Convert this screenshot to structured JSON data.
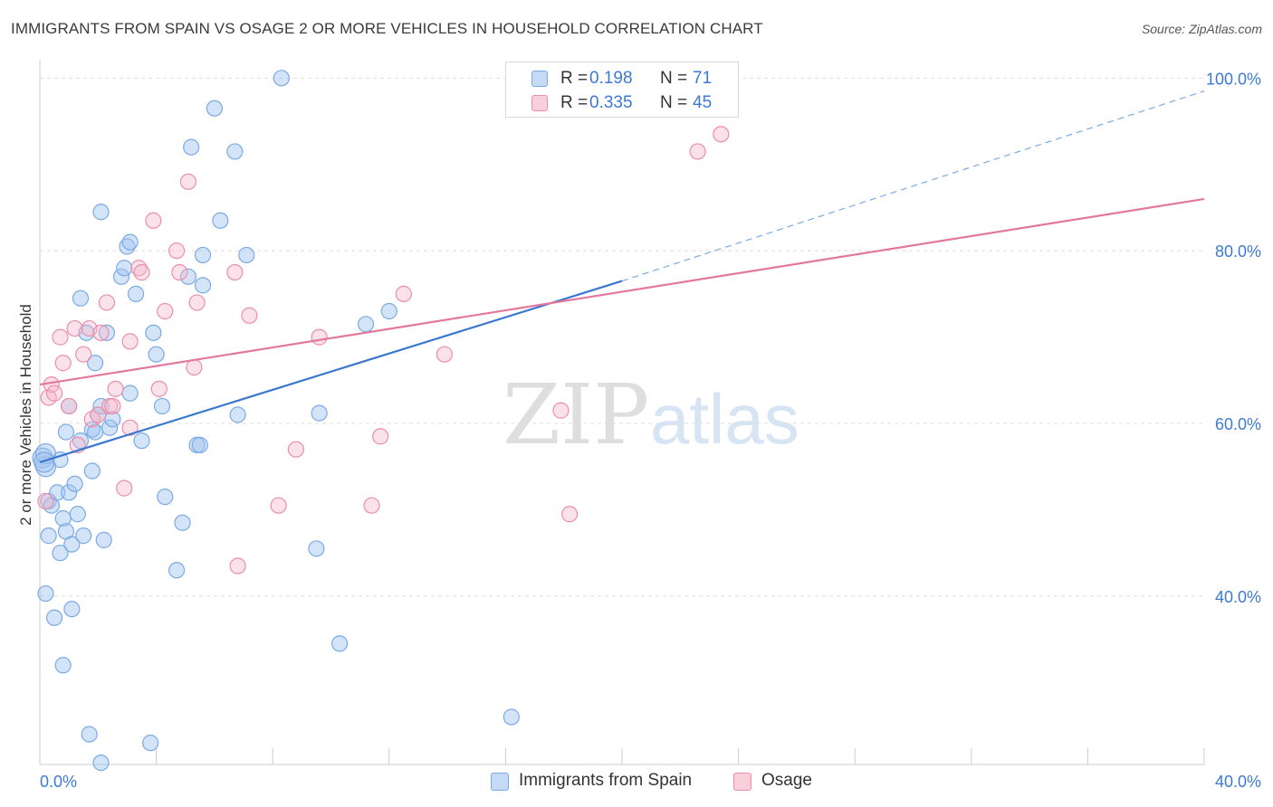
{
  "header": {
    "title": "IMMIGRANTS FROM SPAIN VS OSAGE 2 OR MORE VEHICLES IN HOUSEHOLD CORRELATION CHART",
    "source": "Source: ZipAtlas.com"
  },
  "watermark": {
    "zip": "ZIP",
    "atlas": "atlas"
  },
  "legend": {
    "r_label": "R =",
    "n_label": "N =",
    "series": [
      {
        "name": "Immigrants from Spain",
        "r": "0.198",
        "n": "71",
        "color": "#7aaae6",
        "fill": "#c5daf5"
      },
      {
        "name": "Osage",
        "r": "0.335",
        "n": "45",
        "color": "#ec8eab",
        "fill": "#f8cfdb"
      }
    ]
  },
  "chart_data": {
    "type": "scatter",
    "title": "IMMIGRANTS FROM SPAIN VS OSAGE 2 OR MORE VEHICLES IN HOUSEHOLD CORRELATION CHART",
    "xlabel": "",
    "ylabel": "2 or more Vehicles in Household",
    "xlim": [
      0,
      40
    ],
    "ylim": [
      20.5,
      101.5
    ],
    "x_tick_labels": [
      "0.0%",
      "40.0%"
    ],
    "y_ticks": [
      40,
      60,
      80,
      100
    ],
    "y_tick_labels": [
      "40.0%",
      "60.0%",
      "80.0%",
      "100.0%"
    ],
    "grid": true,
    "legend_position": "top-center",
    "series": [
      {
        "name": "Immigrants from Spain",
        "color": "#3a78d0",
        "points": [
          [
            0.1,
            56.0
          ],
          [
            0.2,
            55.0
          ],
          [
            0.2,
            40.3
          ],
          [
            0.3,
            51.0
          ],
          [
            0.3,
            47.0
          ],
          [
            0.4,
            50.5
          ],
          [
            0.5,
            37.5
          ],
          [
            0.6,
            52.0
          ],
          [
            0.7,
            55.8
          ],
          [
            0.7,
            45.0
          ],
          [
            0.8,
            49.0
          ],
          [
            0.8,
            32.0
          ],
          [
            0.9,
            47.5
          ],
          [
            0.9,
            59.0
          ],
          [
            1.0,
            52.0
          ],
          [
            1.0,
            62.0
          ],
          [
            1.1,
            38.5
          ],
          [
            1.1,
            46.0
          ],
          [
            1.2,
            53.0
          ],
          [
            1.3,
            49.5
          ],
          [
            1.4,
            74.5
          ],
          [
            1.4,
            58.0
          ],
          [
            1.5,
            47.0
          ],
          [
            1.6,
            70.5
          ],
          [
            1.7,
            24.0
          ],
          [
            1.8,
            59.3
          ],
          [
            1.8,
            54.5
          ],
          [
            1.9,
            67.0
          ],
          [
            2.0,
            61.0
          ],
          [
            2.1,
            84.5
          ],
          [
            2.1,
            20.7
          ],
          [
            2.1,
            62.0
          ],
          [
            2.2,
            46.5
          ],
          [
            2.3,
            70.5
          ],
          [
            2.4,
            59.5
          ],
          [
            2.5,
            60.5
          ],
          [
            2.8,
            77.0
          ],
          [
            2.9,
            78.0
          ],
          [
            3.0,
            80.5
          ],
          [
            3.1,
            81.0
          ],
          [
            3.1,
            63.5
          ],
          [
            3.3,
            75.0
          ],
          [
            3.5,
            58.0
          ],
          [
            3.8,
            23.0
          ],
          [
            3.9,
            70.5
          ],
          [
            4.0,
            68.0
          ],
          [
            4.2,
            62.0
          ],
          [
            4.3,
            51.5
          ],
          [
            4.7,
            43.0
          ],
          [
            4.9,
            48.5
          ],
          [
            5.1,
            77.0
          ],
          [
            5.2,
            92.0
          ],
          [
            5.4,
            57.5
          ],
          [
            5.5,
            57.5
          ],
          [
            5.6,
            76.0
          ],
          [
            5.6,
            79.5
          ],
          [
            6.0,
            96.5
          ],
          [
            6.2,
            83.5
          ],
          [
            6.7,
            91.5
          ],
          [
            6.8,
            61.0
          ],
          [
            7.1,
            79.5
          ],
          [
            8.3,
            100.0
          ],
          [
            9.5,
            45.5
          ],
          [
            9.6,
            61.2
          ],
          [
            10.3,
            34.5
          ],
          [
            11.2,
            71.5
          ],
          [
            12.0,
            73.0
          ],
          [
            16.2,
            26.0
          ],
          [
            0.2,
            56.5
          ],
          [
            0.15,
            55.5
          ],
          [
            1.9,
            59.0
          ]
        ]
      },
      {
        "name": "Osage",
        "color": "#e4779c",
        "points": [
          [
            0.2,
            51.0
          ],
          [
            0.3,
            63.0
          ],
          [
            0.4,
            64.5
          ],
          [
            0.5,
            63.5
          ],
          [
            0.7,
            70.0
          ],
          [
            0.8,
            67.0
          ],
          [
            1.0,
            62.0
          ],
          [
            1.2,
            71.0
          ],
          [
            1.3,
            57.5
          ],
          [
            1.5,
            68.0
          ],
          [
            1.7,
            71.0
          ],
          [
            1.8,
            60.5
          ],
          [
            2.0,
            61.0
          ],
          [
            2.1,
            70.5
          ],
          [
            2.3,
            74.0
          ],
          [
            2.4,
            62.0
          ],
          [
            2.5,
            62.0
          ],
          [
            2.6,
            64.0
          ],
          [
            2.9,
            52.5
          ],
          [
            3.1,
            69.5
          ],
          [
            3.1,
            59.5
          ],
          [
            3.4,
            78.0
          ],
          [
            3.5,
            77.5
          ],
          [
            3.9,
            83.5
          ],
          [
            4.1,
            64.0
          ],
          [
            4.3,
            73.0
          ],
          [
            4.7,
            80.0
          ],
          [
            4.8,
            77.5
          ],
          [
            5.1,
            88.0
          ],
          [
            5.3,
            66.5
          ],
          [
            5.4,
            74.0
          ],
          [
            6.7,
            77.5
          ],
          [
            6.8,
            43.5
          ],
          [
            7.2,
            72.5
          ],
          [
            8.2,
            50.5
          ],
          [
            8.8,
            57.0
          ],
          [
            9.6,
            70.0
          ],
          [
            11.4,
            50.5
          ],
          [
            11.7,
            58.5
          ],
          [
            12.5,
            75.0
          ],
          [
            13.9,
            68.0
          ],
          [
            17.9,
            61.5
          ],
          [
            18.2,
            49.5
          ],
          [
            22.6,
            91.5
          ],
          [
            23.4,
            93.5
          ]
        ]
      }
    ],
    "trendlines": [
      {
        "series": "Immigrants from Spain",
        "x": [
          0,
          20
        ],
        "y": [
          55.5,
          76.5
        ],
        "dashed_extension": {
          "x": [
            20,
            40
          ],
          "y": [
            76.5,
            98.5
          ]
        }
      },
      {
        "series": "Osage",
        "x": [
          0,
          40
        ],
        "y": [
          64.5,
          86.0
        ]
      }
    ]
  }
}
